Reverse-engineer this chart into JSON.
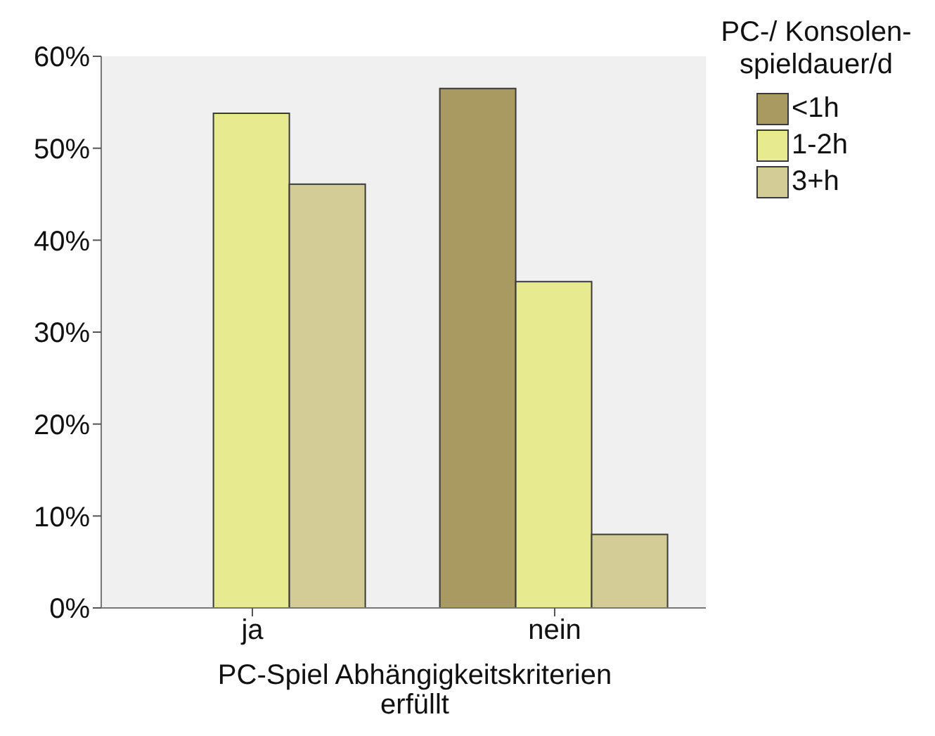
{
  "chart_data": {
    "type": "bar",
    "xlabel": "PC-Spiel Abhängigkeitskriterien erfüllt",
    "legend_title": "PC-/ Konsolen-spieldauer/d",
    "categories": [
      "ja",
      "nein"
    ],
    "series": [
      {
        "name": "<1h",
        "color": "#a89a60",
        "values": [
          0,
          56.5
        ]
      },
      {
        "name": "1-2h",
        "color": "#e8ea90",
        "values": [
          53.8,
          35.5
        ]
      },
      {
        "name": "3+h",
        "color": "#d3cc96",
        "values": [
          46.1,
          8.0
        ]
      }
    ],
    "ylim": [
      0,
      60
    ],
    "yticks": [
      {
        "value": 0,
        "label": "0%"
      },
      {
        "value": 10,
        "label": "10%"
      },
      {
        "value": 20,
        "label": "20%"
      },
      {
        "value": 30,
        "label": "30%"
      },
      {
        "value": 40,
        "label": "40%"
      },
      {
        "value": 50,
        "label": "50%"
      },
      {
        "value": 60,
        "label": "60%"
      }
    ],
    "grid": false,
    "legend": "top right"
  }
}
